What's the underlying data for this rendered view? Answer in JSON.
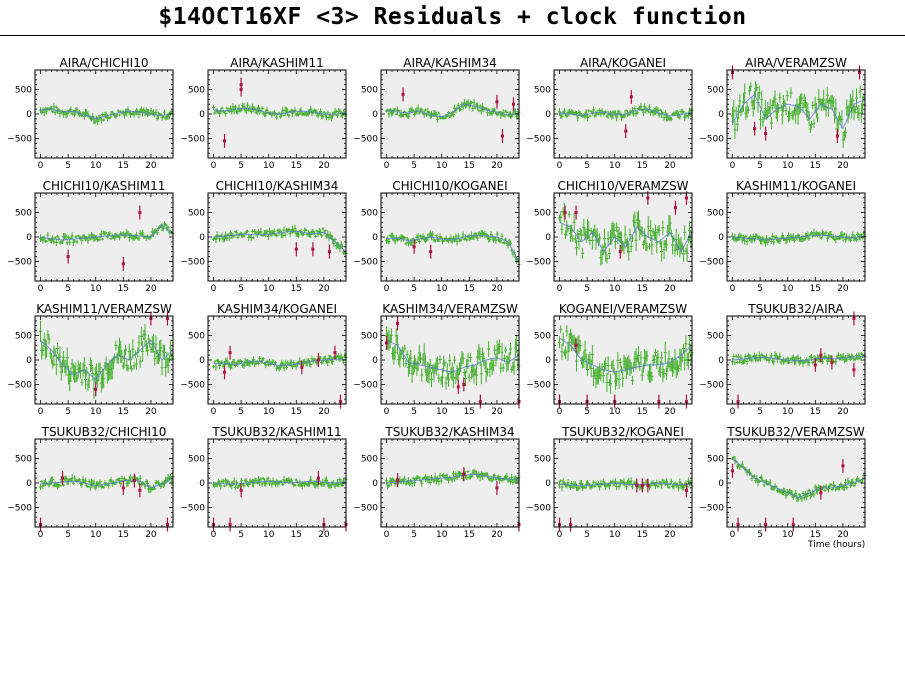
{
  "title": "$14OCT16XF <3> Residuals + clock function",
  "colors": {
    "panel_bg": "#eeeeee",
    "good": "#44b02c",
    "flagged": "#b01040",
    "clock": "#5a78d8"
  },
  "chart_data": {
    "type": "scatter",
    "title": "$14OCT16XF <3> Residuals + clock function",
    "xlabel": "Time (hours)",
    "ylabel": "",
    "xlim": [
      -1,
      24
    ],
    "ylim": [
      -900,
      900
    ],
    "xticks": [
      0,
      5,
      10,
      15,
      20
    ],
    "yticks": [
      -500,
      0,
      500
    ],
    "grid": false,
    "panels": [
      {
        "name": "AIRA/CHICHI10",
        "x": [
          0,
          2,
          4,
          6,
          8,
          10,
          12,
          14,
          16,
          18,
          20,
          22,
          24
        ],
        "y": [
          80,
          100,
          40,
          60,
          -20,
          -100,
          -40,
          20,
          60,
          40,
          0,
          -40,
          20
        ],
        "flagged": []
      },
      {
        "name": "AIRA/KASHIM11",
        "x": [
          0,
          2,
          4,
          6,
          8,
          10,
          12,
          14,
          16,
          18,
          20,
          22,
          24
        ],
        "y": [
          80,
          60,
          100,
          120,
          80,
          20,
          0,
          40,
          60,
          40,
          0,
          -20,
          40
        ],
        "flagged": [
          {
            "x": 2,
            "y": -550
          },
          {
            "x": 5,
            "y": 500
          },
          {
            "x": 5,
            "y": 600
          }
        ]
      },
      {
        "name": "AIRA/KASHIM34",
        "x": [
          0,
          2,
          4,
          6,
          8,
          10,
          12,
          14,
          16,
          18,
          20,
          22,
          24
        ],
        "y": [
          80,
          40,
          20,
          60,
          -20,
          -60,
          40,
          200,
          160,
          80,
          40,
          -20,
          20
        ],
        "flagged": [
          {
            "x": 3,
            "y": 400
          },
          {
            "x": 20,
            "y": 250
          },
          {
            "x": 21,
            "y": -450
          },
          {
            "x": 23,
            "y": 200
          }
        ]
      },
      {
        "name": "AIRA/KOGANEI",
        "x": [
          0,
          2,
          4,
          6,
          8,
          10,
          12,
          14,
          16,
          18,
          20,
          22,
          24
        ],
        "y": [
          20,
          0,
          -40,
          20,
          40,
          -20,
          0,
          80,
          100,
          20,
          -40,
          -20,
          40
        ],
        "flagged": [
          {
            "x": 12,
            "y": -350
          },
          {
            "x": 13,
            "y": 350
          }
        ]
      },
      {
        "name": "AIRA/VERAMZSW",
        "x": [
          0,
          2,
          4,
          6,
          8,
          10,
          12,
          14,
          16,
          18,
          20,
          22,
          24
        ],
        "y": [
          -200,
          200,
          400,
          -100,
          100,
          200,
          150,
          -100,
          200,
          100,
          -300,
          200,
          300
        ],
        "flagged": [
          {
            "x": 0,
            "y": 850
          },
          {
            "x": 4,
            "y": -300
          },
          {
            "x": 6,
            "y": -400
          },
          {
            "x": 19,
            "y": -450
          },
          {
            "x": 23,
            "y": 850
          }
        ]
      },
      {
        "name": "CHICHI10/KASHIM11",
        "x": [
          0,
          2,
          4,
          6,
          8,
          10,
          12,
          14,
          16,
          18,
          20,
          22,
          24
        ],
        "y": [
          0,
          -40,
          -60,
          -40,
          -20,
          0,
          20,
          40,
          40,
          20,
          0,
          250,
          50
        ],
        "flagged": [
          {
            "x": 5,
            "y": -400
          },
          {
            "x": 15,
            "y": -550
          },
          {
            "x": 18,
            "y": 500
          }
        ]
      },
      {
        "name": "CHICHI10/KASHIM34",
        "x": [
          0,
          2,
          4,
          6,
          8,
          10,
          12,
          14,
          16,
          18,
          20,
          22,
          24
        ],
        "y": [
          0,
          20,
          40,
          60,
          40,
          60,
          80,
          120,
          100,
          60,
          100,
          -100,
          -300
        ],
        "flagged": [
          {
            "x": 15,
            "y": -250
          },
          {
            "x": 18,
            "y": -250
          },
          {
            "x": 21,
            "y": -300
          }
        ]
      },
      {
        "name": "CHICHI10/KOGANEI",
        "x": [
          0,
          2,
          4,
          6,
          8,
          10,
          12,
          14,
          16,
          18,
          20,
          22,
          24
        ],
        "y": [
          -40,
          -20,
          -80,
          -40,
          0,
          -40,
          -60,
          0,
          40,
          20,
          0,
          -100,
          -500
        ],
        "flagged": [
          {
            "x": 5,
            "y": -200
          },
          {
            "x": 8,
            "y": -300
          }
        ]
      },
      {
        "name": "CHICHI10/VERAMZSW",
        "x": [
          0,
          2,
          4,
          6,
          8,
          10,
          12,
          14,
          16,
          18,
          20,
          22,
          24
        ],
        "y": [
          300,
          200,
          -100,
          100,
          -300,
          0,
          -200,
          200,
          0,
          -100,
          100,
          -300,
          100
        ],
        "flagged": [
          {
            "x": 1,
            "y": 500
          },
          {
            "x": 3,
            "y": 500
          },
          {
            "x": 11,
            "y": -300
          },
          {
            "x": 16,
            "y": 800
          },
          {
            "x": 21,
            "y": 600
          },
          {
            "x": 23,
            "y": 800
          }
        ]
      },
      {
        "name": "KASHIM11/KOGANEI",
        "x": [
          0,
          2,
          4,
          6,
          8,
          10,
          12,
          14,
          16,
          18,
          20,
          22,
          24
        ],
        "y": [
          0,
          -20,
          -40,
          -60,
          -40,
          -20,
          0,
          20,
          40,
          20,
          0,
          -20,
          20
        ],
        "flagged": []
      },
      {
        "name": "KASHIM11/VERAMZSW",
        "x": [
          0,
          2,
          4,
          6,
          8,
          10,
          12,
          14,
          16,
          18,
          20,
          22,
          24
        ],
        "y": [
          400,
          200,
          -100,
          -300,
          -200,
          -400,
          -100,
          100,
          0,
          200,
          400,
          0,
          200
        ],
        "flagged": [
          {
            "x": 10,
            "y": -600
          },
          {
            "x": 20,
            "y": 850
          },
          {
            "x": 23,
            "y": 850
          }
        ]
      },
      {
        "name": "KASHIM34/KOGANEI",
        "x": [
          0,
          2,
          4,
          6,
          8,
          10,
          12,
          14,
          16,
          18,
          20,
          22,
          24
        ],
        "y": [
          -80,
          -60,
          -100,
          -40,
          -20,
          -60,
          -120,
          -100,
          -60,
          -20,
          0,
          20,
          0
        ],
        "flagged": [
          {
            "x": 2,
            "y": -250
          },
          {
            "x": 3,
            "y": 150
          },
          {
            "x": 16,
            "y": -150
          },
          {
            "x": 19,
            "y": 0
          },
          {
            "x": 22,
            "y": 150
          },
          {
            "x": 23,
            "y": -850
          }
        ]
      },
      {
        "name": "KASHIM34/VERAMZSW",
        "x": [
          0,
          2,
          4,
          6,
          8,
          10,
          12,
          14,
          16,
          18,
          20,
          22,
          24
        ],
        "y": [
          400,
          300,
          -50,
          -100,
          -150,
          -200,
          -250,
          -150,
          -100,
          0,
          50,
          -50,
          100
        ],
        "flagged": [
          {
            "x": 0,
            "y": 350
          },
          {
            "x": 2,
            "y": 750
          },
          {
            "x": 13,
            "y": -550
          },
          {
            "x": 14,
            "y": -500
          },
          {
            "x": 17,
            "y": -850
          },
          {
            "x": 24,
            "y": -850
          }
        ]
      },
      {
        "name": "KOGANEI/VERAMZSW",
        "x": [
          0,
          2,
          4,
          6,
          8,
          10,
          12,
          14,
          16,
          18,
          20,
          22,
          24
        ],
        "y": [
          450,
          300,
          0,
          -100,
          -200,
          -250,
          -200,
          -150,
          -100,
          -100,
          -50,
          100,
          300
        ],
        "flagged": [
          {
            "x": 0,
            "y": -850
          },
          {
            "x": 3,
            "y": 300
          },
          {
            "x": 5,
            "y": -850
          },
          {
            "x": 10,
            "y": -850
          },
          {
            "x": 18,
            "y": -850
          },
          {
            "x": 23,
            "y": -850
          }
        ]
      },
      {
        "name": "TSUKUB32/AIRA",
        "x": [
          0,
          2,
          4,
          6,
          8,
          10,
          12,
          14,
          16,
          18,
          20,
          22,
          24
        ],
        "y": [
          0,
          20,
          40,
          60,
          20,
          0,
          -20,
          0,
          40,
          20,
          40,
          60,
          80
        ],
        "flagged": [
          {
            "x": 1,
            "y": -850
          },
          {
            "x": 15,
            "y": -100
          },
          {
            "x": 16,
            "y": 100
          },
          {
            "x": 18,
            "y": -50
          },
          {
            "x": 22,
            "y": -200
          },
          {
            "x": 22,
            "y": 850
          }
        ]
      },
      {
        "name": "TSUKUB32/CHICHI10",
        "x": [
          0,
          2,
          4,
          6,
          8,
          10,
          12,
          14,
          16,
          18,
          20,
          22,
          24
        ],
        "y": [
          -20,
          0,
          20,
          40,
          0,
          -60,
          -20,
          20,
          60,
          40,
          -100,
          -20,
          100
        ],
        "flagged": [
          {
            "x": 0,
            "y": -850
          },
          {
            "x": 4,
            "y": 100
          },
          {
            "x": 15,
            "y": -100
          },
          {
            "x": 17,
            "y": 50
          },
          {
            "x": 18,
            "y": -150
          },
          {
            "x": 23,
            "y": -850
          }
        ]
      },
      {
        "name": "TSUKUB32/KASHIM11",
        "x": [
          0,
          2,
          4,
          6,
          8,
          10,
          12,
          14,
          16,
          18,
          20,
          22,
          24
        ],
        "y": [
          0,
          -20,
          -20,
          0,
          20,
          40,
          20,
          0,
          20,
          40,
          20,
          0,
          20
        ],
        "flagged": [
          {
            "x": 0,
            "y": -850
          },
          {
            "x": 3,
            "y": -850
          },
          {
            "x": 5,
            "y": -150
          },
          {
            "x": 19,
            "y": 100
          },
          {
            "x": 20,
            "y": -850
          },
          {
            "x": 24,
            "y": -850
          }
        ]
      },
      {
        "name": "TSUKUB32/KASHIM34",
        "x": [
          0,
          2,
          4,
          6,
          8,
          10,
          12,
          14,
          16,
          18,
          20,
          22,
          24
        ],
        "y": [
          0,
          20,
          40,
          60,
          80,
          100,
          120,
          160,
          180,
          140,
          100,
          80,
          60
        ],
        "flagged": [
          {
            "x": 2,
            "y": 60
          },
          {
            "x": 14,
            "y": 180
          },
          {
            "x": 20,
            "y": -100
          },
          {
            "x": 24,
            "y": -850
          }
        ]
      },
      {
        "name": "TSUKUB32/KOGANEI",
        "x": [
          0,
          2,
          4,
          6,
          8,
          10,
          12,
          14,
          16,
          18,
          20,
          22,
          24
        ],
        "y": [
          -20,
          -40,
          -60,
          -40,
          -20,
          0,
          -20,
          -40,
          -20,
          0,
          -20,
          -40,
          -20
        ],
        "flagged": [
          {
            "x": 0,
            "y": -850
          },
          {
            "x": 2,
            "y": -850
          },
          {
            "x": 14,
            "y": -50
          },
          {
            "x": 15,
            "y": -50
          },
          {
            "x": 16,
            "y": -50
          },
          {
            "x": 23,
            "y": -150
          }
        ]
      },
      {
        "name": "TSUKUB32/VERAMZSW",
        "x": [
          0,
          2,
          4,
          6,
          8,
          10,
          12,
          14,
          16,
          18,
          20,
          22,
          24
        ],
        "y": [
          500,
          300,
          100,
          0,
          -100,
          -200,
          -300,
          -200,
          -100,
          -100,
          -50,
          0,
          100
        ],
        "flagged": [
          {
            "x": 0,
            "y": 250
          },
          {
            "x": 1,
            "y": -850
          },
          {
            "x": 6,
            "y": -850
          },
          {
            "x": 11,
            "y": -850
          },
          {
            "x": 16,
            "y": -200
          },
          {
            "x": 20,
            "y": 350
          }
        ]
      }
    ]
  }
}
